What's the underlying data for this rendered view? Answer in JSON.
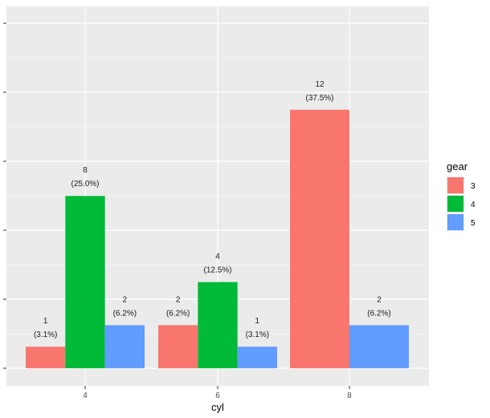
{
  "chart_data": {
    "type": "bar",
    "categories": [
      "4",
      "6",
      "8"
    ],
    "xlabel": "cyl",
    "ylabel": "",
    "ylim": [
      0,
      12.6
    ],
    "grid": true,
    "legend_position": "right",
    "legend_title": "gear",
    "series": [
      {
        "name": "3",
        "color": "#F8766D",
        "values": [
          1,
          2,
          12
        ],
        "labels": [
          [
            "1",
            "(3.1%)"
          ],
          [
            "2",
            "(6.2%)"
          ],
          [
            "12",
            "(37.5%)"
          ]
        ]
      },
      {
        "name": "4",
        "color": "#00BA38",
        "values": [
          8,
          4,
          null
        ],
        "labels": [
          [
            "8",
            "(25.0%)"
          ],
          [
            "4",
            "(12.5%)"
          ],
          null
        ]
      },
      {
        "name": "5",
        "color": "#619CFF",
        "values": [
          2,
          1,
          2
        ],
        "labels": [
          [
            "2",
            "(6.2%)"
          ],
          [
            "1",
            "(3.1%)"
          ],
          [
            "2",
            "(6.2%)"
          ]
        ]
      }
    ],
    "panel_background": "#EBEBEB",
    "grid_color": "#FFFFFF"
  }
}
